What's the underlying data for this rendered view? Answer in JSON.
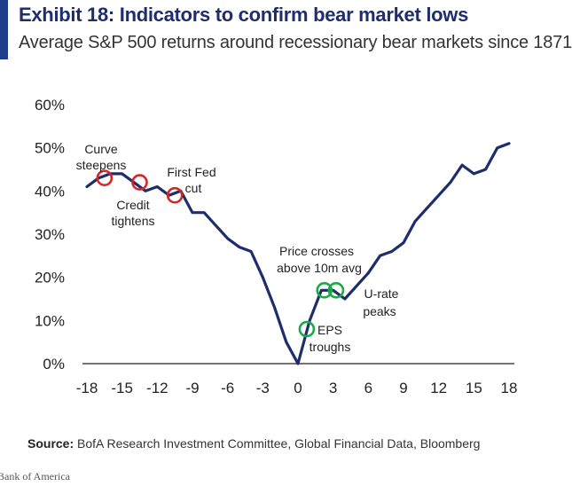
{
  "header": {
    "title": "Exhibit 18: Indicators to confirm bear market lows",
    "subtitle": "Average S&P 500 returns around recessionary bear markets since 1871"
  },
  "footer": {
    "source_label": "Source:",
    "source_text": "BofA Research Investment Committee, Global Financial Data, Bloomberg",
    "credit": "Bank of America"
  },
  "colors": {
    "accent": "#1f3c88",
    "line": "#1e2d6b",
    "marker_red": "#d62728",
    "marker_green": "#1ea84a",
    "title": "#1e2d6b"
  },
  "chart_data": {
    "type": "line",
    "title": "Exhibit 18: Indicators to confirm bear market lows",
    "subtitle": "Average S&P 500 returns around recessionary bear markets since 1871",
    "xlabel": "",
    "ylabel": "",
    "xlim": [
      -18,
      18
    ],
    "ylim": [
      0,
      60
    ],
    "x_ticks": [
      -18,
      -15,
      -12,
      -9,
      -6,
      -3,
      0,
      3,
      6,
      9,
      12,
      15,
      18
    ],
    "x_tick_labels": [
      "-18",
      "-15",
      "-12",
      "-9",
      "-6",
      "-3",
      "0",
      "3",
      "6",
      "9",
      "12",
      "15",
      "18"
    ],
    "y_ticks": [
      0,
      10,
      20,
      30,
      40,
      50,
      60
    ],
    "y_tick_labels": [
      "0%",
      "10%",
      "20%",
      "30%",
      "40%",
      "50%",
      "60%"
    ],
    "grid": false,
    "series": [
      {
        "x": [
          -18,
          -17,
          -16,
          -15,
          -14,
          -13,
          -12,
          -11,
          -10,
          -9,
          -8,
          -7,
          -6,
          -5,
          -4,
          -3,
          -2,
          -1,
          0,
          1,
          2,
          3,
          4,
          5,
          6,
          7,
          8,
          9,
          10,
          11,
          12,
          13,
          14,
          15,
          16,
          17,
          18
        ],
        "y": [
          41,
          43,
          44,
          44,
          42,
          40,
          41,
          39,
          40,
          35,
          35,
          32,
          29,
          27,
          26,
          20,
          13,
          5,
          0,
          10,
          17,
          17,
          15,
          18,
          21,
          25,
          26,
          28,
          33,
          36,
          39,
          42,
          46,
          44,
          45,
          50,
          51
        ]
      }
    ],
    "annotations": [
      {
        "label": "Curve steepens",
        "x": -16.5,
        "y": 43,
        "marker": "red"
      },
      {
        "label": "Credit tightens",
        "x": -13.5,
        "y": 42,
        "marker": "red"
      },
      {
        "label": "First Fed cut",
        "x": -10.5,
        "y": 39,
        "marker": "red"
      },
      {
        "label": "EPS troughs",
        "x": 0.75,
        "y": 8,
        "marker": "green"
      },
      {
        "label": "Price crosses above 10m avg",
        "x": 2.25,
        "y": 17,
        "marker": "green"
      },
      {
        "label": "Price crosses above 10m avg",
        "x": 3.25,
        "y": 17,
        "marker": "green"
      },
      {
        "label": "U-rate peaks",
        "x": null,
        "y": null,
        "marker": null
      }
    ]
  }
}
